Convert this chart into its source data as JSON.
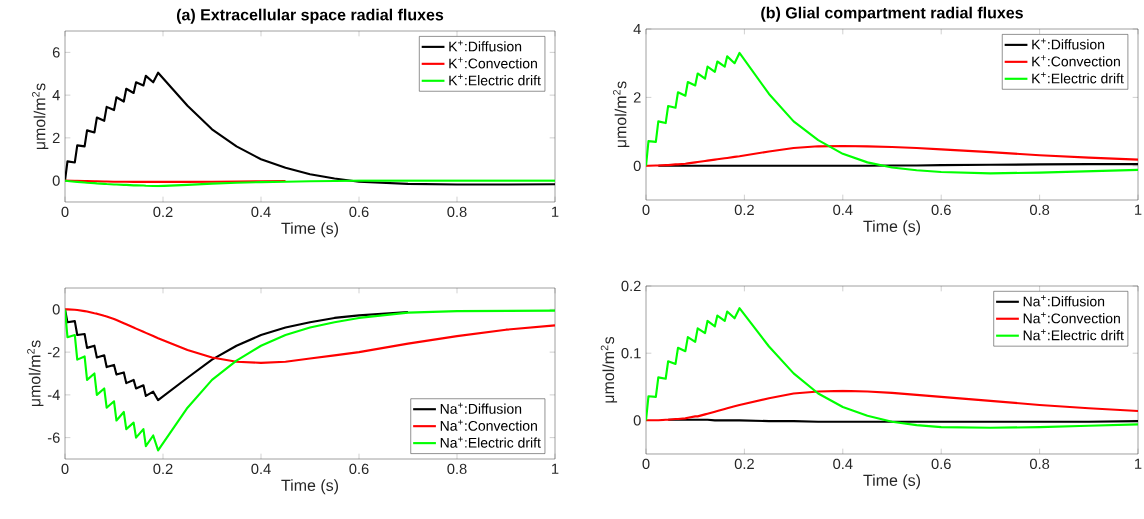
{
  "chart_data": [
    {
      "type": "line",
      "title": "(a) Extracellular space radial fluxes",
      "xlabel": "Time (s)",
      "ylabel": "μmol/m$^{2}$s",
      "legend": "top right",
      "xlim": [
        0,
        1
      ],
      "ylim": [
        -1,
        7
      ],
      "xticks": [
        0,
        0.2,
        0.4,
        0.6,
        0.8,
        1
      ],
      "yticks": [
        0,
        2,
        4,
        6
      ],
      "x": [
        0,
        0.005,
        0.02,
        0.025,
        0.04,
        0.045,
        0.06,
        0.065,
        0.08,
        0.085,
        0.1,
        0.105,
        0.12,
        0.125,
        0.14,
        0.145,
        0.16,
        0.165,
        0.18,
        0.19,
        0.25,
        0.3,
        0.35,
        0.4,
        0.45,
        0.5,
        0.55,
        0.6,
        0.7,
        0.8,
        0.9,
        1
      ],
      "series": [
        {
          "name": "K$^{+}$:Diffusion",
          "color": "#000000",
          "values": [
            0,
            0.9,
            0.85,
            1.65,
            1.6,
            2.35,
            2.25,
            2.95,
            2.8,
            3.45,
            3.3,
            3.9,
            3.7,
            4.3,
            4.1,
            4.6,
            4.45,
            4.9,
            4.6,
            5.05,
            3.5,
            2.4,
            1.6,
            1.0,
            0.6,
            0.3,
            0.1,
            -0.05,
            -0.15,
            -0.18,
            -0.18,
            -0.17
          ]
        },
        {
          "name": "K$^{+}$:Convection",
          "color": "#ff0000",
          "values": [
            0,
            0,
            -0.01,
            -0.01,
            -0.02,
            -0.02,
            -0.03,
            -0.03,
            -0.04,
            -0.04,
            -0.05,
            -0.05,
            -0.05,
            -0.05,
            -0.06,
            -0.06,
            -0.06,
            -0.06,
            -0.06,
            -0.06,
            -0.06,
            -0.05,
            -0.04,
            -0.03,
            -0.02,
            null,
            null,
            null,
            null,
            null,
            null,
            null
          ]
        },
        {
          "name": "K$^{+}$:Electric drift",
          "color": "#00ff00",
          "values": [
            0,
            -0.02,
            -0.05,
            -0.06,
            -0.09,
            -0.1,
            -0.12,
            -0.13,
            -0.15,
            -0.16,
            -0.18,
            -0.18,
            -0.2,
            -0.2,
            -0.22,
            -0.22,
            -0.23,
            -0.24,
            -0.25,
            -0.26,
            -0.2,
            -0.14,
            -0.1,
            -0.07,
            -0.05,
            -0.03,
            -0.02,
            0,
            0,
            0,
            0,
            0
          ]
        }
      ]
    },
    {
      "type": "line",
      "title": "(b) Glial compartment radial fluxes",
      "xlabel": "Time (s)",
      "ylabel": "μmol/m$^{2}$s",
      "legend": "top right",
      "xlim": [
        0,
        1
      ],
      "ylim": [
        -1,
        4
      ],
      "xticks": [
        0,
        0.2,
        0.4,
        0.6,
        0.8,
        1
      ],
      "yticks": [
        0,
        2,
        4
      ],
      "x": [
        0,
        0.005,
        0.02,
        0.025,
        0.04,
        0.045,
        0.06,
        0.065,
        0.08,
        0.085,
        0.1,
        0.105,
        0.12,
        0.125,
        0.14,
        0.145,
        0.16,
        0.165,
        0.18,
        0.19,
        0.25,
        0.3,
        0.35,
        0.4,
        0.45,
        0.5,
        0.55,
        0.6,
        0.7,
        0.8,
        0.9,
        1
      ],
      "series": [
        {
          "name": "K$^{+}$:Diffusion",
          "color": "#000000",
          "values": [
            null,
            null,
            null,
            0,
            0,
            0,
            0,
            0,
            0,
            0,
            0,
            0,
            0,
            0,
            0,
            0,
            0,
            0,
            0,
            0,
            0,
            0,
            0,
            0,
            0,
            0.01,
            0.01,
            0.02,
            0.03,
            0.04,
            0.05,
            0.05
          ]
        },
        {
          "name": "K$^{+}$:Convection",
          "color": "#ff0000",
          "values": [
            0,
            0,
            0.01,
            0.01,
            0.02,
            0.02,
            0.04,
            0.04,
            0.06,
            0.07,
            0.1,
            0.11,
            0.14,
            0.15,
            0.18,
            0.19,
            0.22,
            0.23,
            0.26,
            0.28,
            0.42,
            0.52,
            0.57,
            0.58,
            0.57,
            0.55,
            0.52,
            0.48,
            0.4,
            0.31,
            0.24,
            0.18
          ]
        },
        {
          "name": "K$^{+}$:Electric drift",
          "color": "#00ff00",
          "values": [
            0,
            0.72,
            0.7,
            1.3,
            1.25,
            1.75,
            1.7,
            2.15,
            2.05,
            2.45,
            2.35,
            2.7,
            2.55,
            2.9,
            2.75,
            3.05,
            2.9,
            3.2,
            3.0,
            3.3,
            2.1,
            1.3,
            0.75,
            0.35,
            0.1,
            -0.05,
            -0.13,
            -0.18,
            -0.22,
            -0.2,
            -0.16,
            -0.12
          ]
        }
      ]
    },
    {
      "type": "line",
      "xlabel": "Time (s)",
      "ylabel": "μmol/m$^{2}$s",
      "legend": "bottom right",
      "xlim": [
        0,
        1
      ],
      "ylim": [
        -7,
        1
      ],
      "xticks": [
        0,
        0.2,
        0.4,
        0.6,
        0.8,
        1
      ],
      "yticks": [
        -6,
        -4,
        -2,
        0
      ],
      "x": [
        0,
        0.005,
        0.02,
        0.025,
        0.04,
        0.045,
        0.06,
        0.065,
        0.08,
        0.085,
        0.1,
        0.105,
        0.12,
        0.125,
        0.14,
        0.145,
        0.16,
        0.165,
        0.18,
        0.19,
        0.25,
        0.3,
        0.35,
        0.4,
        0.45,
        0.5,
        0.55,
        0.6,
        0.7,
        0.8,
        0.9,
        1
      ],
      "series": [
        {
          "name": "Na$^{+}$:Diffusion",
          "color": "#000000",
          "values": [
            0,
            -0.6,
            -0.55,
            -1.2,
            -1.15,
            -1.8,
            -1.7,
            -2.25,
            -2.15,
            -2.7,
            -2.6,
            -3.05,
            -2.95,
            -3.45,
            -3.3,
            -3.7,
            -3.55,
            -4.05,
            -3.85,
            -4.25,
            -3.2,
            -2.35,
            -1.7,
            -1.2,
            -0.85,
            -0.6,
            -0.4,
            -0.28,
            -0.12,
            null,
            null,
            null
          ]
        },
        {
          "name": "Na$^{+}$:Convection",
          "color": "#ff0000",
          "values": [
            0,
            0,
            -0.02,
            -0.03,
            -0.08,
            -0.1,
            -0.18,
            -0.2,
            -0.3,
            -0.33,
            -0.45,
            -0.5,
            -0.65,
            -0.7,
            -0.85,
            -0.9,
            -1.05,
            -1.1,
            -1.25,
            -1.35,
            -1.9,
            -2.25,
            -2.45,
            -2.5,
            -2.45,
            -2.3,
            -2.15,
            -2.0,
            -1.6,
            -1.25,
            -0.95,
            -0.75
          ]
        },
        {
          "name": "Na$^{+}$:Electric drift",
          "color": "#00ff00",
          "values": [
            0,
            -1.3,
            -1.2,
            -2.35,
            -2.2,
            -3.3,
            -3.0,
            -4.0,
            -3.7,
            -4.6,
            -4.3,
            -5.2,
            -4.8,
            -5.6,
            -5.3,
            -6.0,
            -5.6,
            -6.4,
            -5.9,
            -6.6,
            -4.6,
            -3.3,
            -2.4,
            -1.7,
            -1.2,
            -0.85,
            -0.6,
            -0.4,
            -0.15,
            -0.08,
            -0.07,
            -0.06
          ]
        }
      ]
    },
    {
      "type": "line",
      "xlabel": "Time (s)",
      "ylabel": "μmol/m$^{2}$s",
      "legend": "top right",
      "xlim": [
        0,
        1
      ],
      "ylim": [
        -0.05,
        0.2
      ],
      "xticks": [
        0,
        0.2,
        0.4,
        0.6,
        0.8,
        1
      ],
      "yticks": [
        0,
        0.1,
        0.2
      ],
      "x": [
        0,
        0.005,
        0.02,
        0.025,
        0.04,
        0.045,
        0.06,
        0.065,
        0.08,
        0.085,
        0.1,
        0.105,
        0.12,
        0.125,
        0.14,
        0.145,
        0.16,
        0.165,
        0.18,
        0.19,
        0.25,
        0.3,
        0.35,
        0.4,
        0.45,
        0.5,
        0.55,
        0.6,
        0.7,
        0.8,
        0.9,
        1
      ],
      "series": [
        {
          "name": "Na$^{+}$:Diffusion",
          "color": "#000000",
          "values": [
            null,
            null,
            null,
            null,
            null,
            0.001,
            0.001,
            0.001,
            0.001,
            0.001,
            0.001,
            0.001,
            0.001,
            0.001,
            0,
            0,
            0,
            0,
            0,
            0,
            -0.001,
            -0.001,
            -0.002,
            -0.002,
            -0.002,
            -0.002,
            -0.002,
            -0.002,
            -0.002,
            -0.002,
            -0.002,
            -0.001
          ]
        },
        {
          "name": "Na$^{+}$:Convection",
          "color": "#ff0000",
          "values": [
            0,
            0,
            0,
            0,
            0.001,
            0.001,
            0.002,
            0.002,
            0.003,
            0.004,
            0.006,
            0.006,
            0.009,
            0.01,
            0.013,
            0.014,
            0.017,
            0.018,
            0.021,
            0.023,
            0.033,
            0.04,
            0.043,
            0.044,
            0.043,
            0.041,
            0.038,
            0.035,
            0.029,
            0.023,
            0.018,
            0.014
          ]
        },
        {
          "name": "Na$^{+}$:Electric drift",
          "color": "#00ff00",
          "values": [
            0,
            0.036,
            0.035,
            0.064,
            0.062,
            0.088,
            0.084,
            0.108,
            0.103,
            0.124,
            0.117,
            0.137,
            0.13,
            0.148,
            0.14,
            0.156,
            0.148,
            0.162,
            0.152,
            0.167,
            0.11,
            0.07,
            0.04,
            0.02,
            0.007,
            -0.002,
            -0.007,
            -0.01,
            -0.011,
            -0.01,
            -0.008,
            -0.006
          ]
        }
      ]
    }
  ]
}
